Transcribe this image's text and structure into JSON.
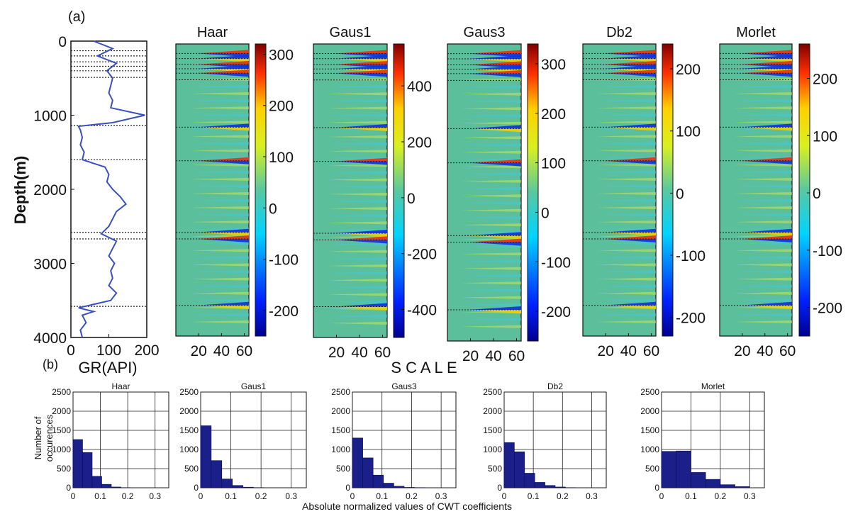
{
  "panel_labels": {
    "a": "(a)",
    "b": "(b)"
  },
  "colors": {
    "gr_line": "#3a4fc0",
    "hist_bar": "#1a1f8a",
    "bed_marker": "#222222"
  },
  "chart_data": [
    {
      "type": "line",
      "id": "gr_log",
      "xlabel": "GR(API)",
      "ylabel": "Depth(m)",
      "xlim": [
        0,
        200
      ],
      "ylim": [
        0,
        4000
      ],
      "y_inverted": true,
      "xticks": [
        0,
        100,
        200
      ],
      "yticks": [
        0,
        1000,
        2000,
        3000,
        4000
      ],
      "bed_boundaries_m": [
        130,
        200,
        280,
        340,
        400,
        490,
        1140,
        1600,
        2580,
        2670,
        3580
      ],
      "depth_m": [
        0,
        100,
        200,
        300,
        400,
        500,
        600,
        700,
        800,
        900,
        1000,
        1100,
        1150,
        1200,
        1300,
        1400,
        1500,
        1600,
        1700,
        1800,
        1900,
        2000,
        2100,
        2200,
        2300,
        2400,
        2500,
        2600,
        2700,
        2800,
        2900,
        3000,
        3100,
        3200,
        3300,
        3400,
        3500,
        3600,
        3650,
        3700,
        3800,
        3900,
        4000
      ],
      "gr_api": [
        60,
        110,
        70,
        120,
        95,
        110,
        105,
        100,
        110,
        105,
        195,
        110,
        20,
        25,
        30,
        25,
        35,
        30,
        90,
        100,
        95,
        110,
        130,
        145,
        120,
        110,
        100,
        80,
        120,
        110,
        100,
        115,
        105,
        110,
        100,
        120,
        105,
        20,
        60,
        30,
        40,
        25,
        30
      ]
    },
    {
      "type": "heatmap",
      "id": "cwt_scalograms",
      "xlabel": "S C A L E",
      "ylim": [
        0,
        4000
      ],
      "xticks": [
        20,
        40,
        60
      ],
      "panels": [
        {
          "title": "Haar",
          "colorbar_ticks": [
            300,
            200,
            100,
            0,
            -100,
            -200
          ],
          "clim": [
            -250,
            320
          ]
        },
        {
          "title": "Gaus1",
          "colorbar_ticks": [
            400,
            200,
            0,
            -200,
            -400
          ],
          "clim": [
            -500,
            550
          ]
        },
        {
          "title": "Gaus3",
          "colorbar_ticks": [
            300,
            200,
            100,
            0,
            -100,
            -200
          ],
          "clim": [
            -260,
            340
          ]
        },
        {
          "title": "Db2",
          "colorbar_ticks": [
            200,
            100,
            0,
            -100,
            -200
          ],
          "clim": [
            -230,
            240
          ]
        },
        {
          "title": "Morlet",
          "colorbar_ticks": [
            200,
            100,
            0,
            -100,
            -200
          ],
          "clim": [
            -250,
            260
          ]
        }
      ]
    },
    {
      "type": "bar",
      "id": "histograms",
      "ylabel": "Number of occurences",
      "xlabel": "Absolute normalized values of CWT coefficients",
      "xlim": [
        0,
        0.35
      ],
      "ylim": [
        0,
        2500
      ],
      "xticks": [
        0,
        0.1,
        0.2,
        0.3
      ],
      "yticks": [
        0,
        500,
        1000,
        1500,
        2000,
        2500
      ],
      "series": [
        {
          "name": "Haar",
          "bin_width": 0.035,
          "values": [
            1260,
            920,
            300,
            90,
            20,
            5,
            0,
            0,
            0,
            0
          ]
        },
        {
          "name": "Gaus1",
          "bin_width": 0.035,
          "values": [
            1620,
            710,
            230,
            60,
            15,
            5,
            0,
            0,
            0,
            0
          ]
        },
        {
          "name": "Gaus3",
          "bin_width": 0.035,
          "values": [
            1300,
            780,
            330,
            120,
            40,
            10,
            5,
            0,
            0,
            0
          ]
        },
        {
          "name": "Db2",
          "bin_width": 0.035,
          "values": [
            1180,
            940,
            380,
            140,
            60,
            20,
            5,
            0,
            0,
            0
          ]
        },
        {
          "name": "Morlet",
          "bin_width": 0.05,
          "values": [
            950,
            960,
            400,
            220,
            80,
            30,
            0
          ]
        }
      ]
    }
  ]
}
